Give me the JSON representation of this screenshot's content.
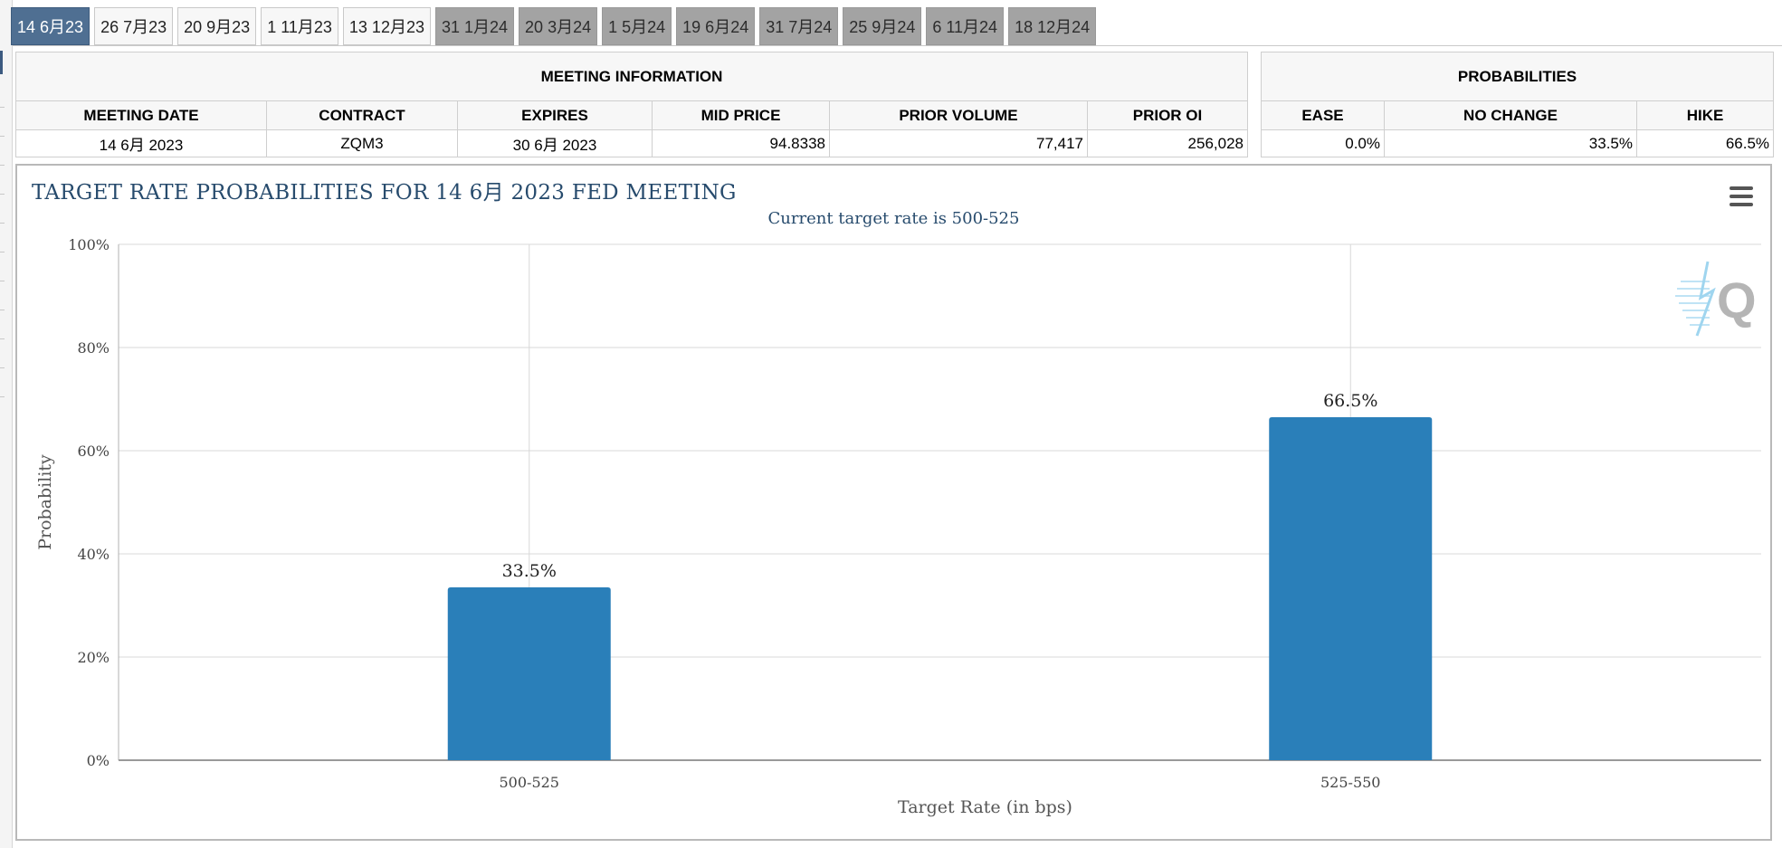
{
  "tabs": [
    {
      "label": "14 6月23",
      "state": "active"
    },
    {
      "label": "26 7月23",
      "state": "light"
    },
    {
      "label": "20 9月23",
      "state": "light"
    },
    {
      "label": "1 11月23",
      "state": "light"
    },
    {
      "label": "13 12月23",
      "state": "light"
    },
    {
      "label": "31 1月24",
      "state": "dark"
    },
    {
      "label": "20 3月24",
      "state": "dark"
    },
    {
      "label": "1 5月24",
      "state": "dark"
    },
    {
      "label": "19 6月24",
      "state": "dark"
    },
    {
      "label": "31 7月24",
      "state": "dark"
    },
    {
      "label": "25 9月24",
      "state": "dark"
    },
    {
      "label": "6 11月24",
      "state": "dark"
    },
    {
      "label": "18 12月24",
      "state": "dark"
    }
  ],
  "meeting_info": {
    "title": "MEETING INFORMATION",
    "headers": {
      "meeting_date": "MEETING DATE",
      "contract": "CONTRACT",
      "expires": "EXPIRES",
      "mid_price": "MID PRICE",
      "prior_volume": "PRIOR VOLUME",
      "prior_oi": "PRIOR OI"
    },
    "row": {
      "meeting_date": "14 6月 2023",
      "contract": "ZQM3",
      "expires": "30 6月 2023",
      "mid_price": "94.8338",
      "prior_volume": "77,417",
      "prior_oi": "256,028"
    }
  },
  "probabilities": {
    "title": "PROBABILITIES",
    "headers": {
      "ease": "EASE",
      "no_change": "NO CHANGE",
      "hike": "HIKE"
    },
    "row": {
      "ease": "0.0%",
      "no_change": "33.5%",
      "hike": "66.5%"
    }
  },
  "chart_data": {
    "type": "bar",
    "title": "TARGET RATE PROBABILITIES FOR 14 6月 2023 FED MEETING",
    "subtitle": "Current target rate is 500-525",
    "xlabel": "Target Rate (in bps)",
    "ylabel": "Probability",
    "categories": [
      "500-525",
      "525-550"
    ],
    "values": [
      33.5,
      66.5
    ],
    "data_labels": [
      "33.5%",
      "66.5%"
    ],
    "ylim": [
      0,
      100
    ],
    "y_ticks": [
      0,
      20,
      40,
      60,
      80,
      100
    ],
    "y_tick_labels": [
      "0%",
      "20%",
      "40%",
      "60%",
      "80%",
      "100%"
    ],
    "grid": true,
    "legend": "none",
    "bar_color": "#2a7fb9",
    "title_color": "#274b6d"
  },
  "colors": {
    "active_tab": "#4f6f92",
    "inactive_tab_dark": "#a3a3a3",
    "header_bg": "#f7f7f7"
  }
}
